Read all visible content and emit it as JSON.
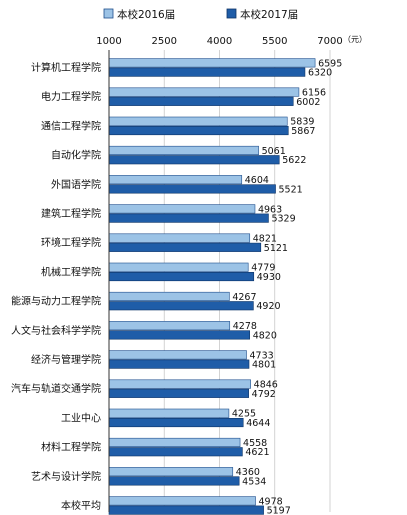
{
  "colors": {
    "series_2016": "#9CC3E6",
    "series_2017": "#1F5DA8",
    "grid": "#C8C8C8",
    "axis": "#333333"
  },
  "chart_data": {
    "type": "bar",
    "orientation": "horizontal",
    "title": "",
    "xlabel": "",
    "ylabel": "",
    "unit": "（元）",
    "xlim": [
      1000,
      7000
    ],
    "xticks": [
      1000,
      2500,
      4000,
      5500,
      7000
    ],
    "xtick_labels": [
      "1000",
      "2500",
      "4000",
      "5500",
      "7000"
    ],
    "grid": true,
    "legend_position": "top",
    "categories": [
      "计算机工程学院",
      "电力工程学院",
      "通信工程学院",
      "自动化学院",
      "外国语学院",
      "建筑工程学院",
      "环境工程学院",
      "机械工程学院",
      "能源与动力工程学院",
      "人文与社会科学学院",
      "经济与管理学院",
      "汽车与轨道交通学院",
      "工业中心",
      "材料工程学院",
      "艺术与设计学院",
      "本校平均"
    ],
    "series": [
      {
        "name": "本校2016届",
        "values": [
          6595,
          6156,
          5839,
          5061,
          4604,
          4963,
          4821,
          4779,
          4267,
          4278,
          4733,
          4846,
          4255,
          4558,
          4360,
          4978
        ]
      },
      {
        "name": "本校2017届",
        "values": [
          6320,
          6002,
          5867,
          5622,
          5521,
          5329,
          5121,
          4930,
          4920,
          4820,
          4801,
          4792,
          4644,
          4621,
          4534,
          5197
        ]
      }
    ]
  }
}
